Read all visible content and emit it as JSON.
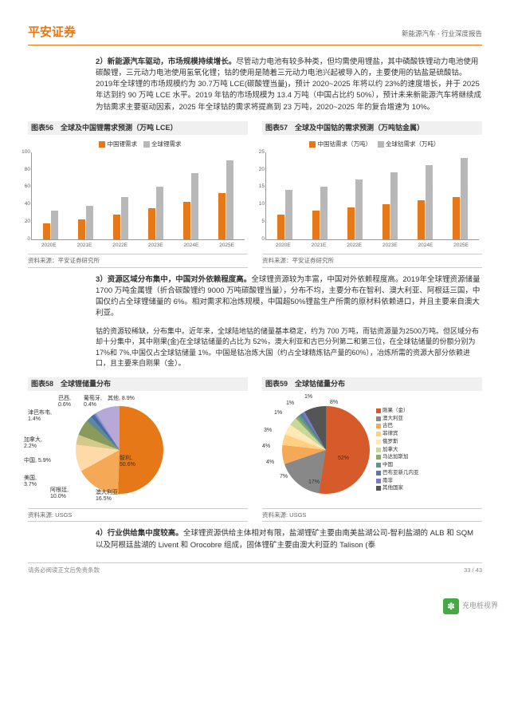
{
  "header": {
    "logo": "平安证券",
    "cat": "新能源汽车 · 行业深度报告"
  },
  "p2": {
    "num": "2）",
    "title": "新能源汽车驱动，市场规模持续增长。",
    "body": "尽管动力电池有较多种类，但均需使用锂盐，其中磷酸铁锂动力电池使用碳酸锂，三元动力电池使用氢氧化锂；钴的使用是随着三元动力电池兴起被导入的，主要使用的钴盐是硫酸钴。2019年全球锂的市场规模约为 30.7万吨 LCE(碳酸锂当量)，预计 2020~2025 年将以约 23%的速度增长，并于 2025 年达到约 90 万吨 LCE 水平。2019 年钴的市场规模为 13.4 万吨（中国占比约 50%），预计未来新能源汽车将继续成为钴需求主要驱动因素，2025 年全球钴的需求将提高到 23 万吨，2020~2025 年的复合增速为 10%。"
  },
  "c56": {
    "title": "图表56　全球及中国锂需求预测（万吨 LCE）",
    "leg1": "中国锂需求",
    "leg2": "全球锂需求",
    "ymax": 100,
    "yt": [
      0,
      20,
      40,
      60,
      80,
      100
    ],
    "cats": [
      "2020E",
      "2021E",
      "2022E",
      "2023E",
      "2024E",
      "2025E"
    ],
    "s1": [
      18,
      22,
      28,
      35,
      42,
      52
    ],
    "s2": [
      32,
      38,
      48,
      60,
      75,
      90
    ],
    "c1": "#e67817",
    "c2": "#b8b8b8"
  },
  "c57": {
    "title": "图表57　全球及中国钴的需求预测（万吨钴金属）",
    "leg1": "中国钴需求（万吨）",
    "leg2": "全球钴需求（万吨）",
    "ymax": 25,
    "yt": [
      0,
      5,
      10,
      15,
      20,
      25
    ],
    "cats": [
      "2020E",
      "2021E",
      "2022E",
      "2023E",
      "2024E",
      "2025E"
    ],
    "s1": [
      7,
      8,
      9,
      10,
      11,
      12
    ],
    "s2": [
      14,
      15,
      17,
      19,
      21,
      23
    ],
    "c1": "#e67817",
    "c2": "#b8b8b8"
  },
  "src1": "资料来源：平安证券研究所",
  "p3": {
    "num": "3）",
    "title": "资源区域分布集中，中国对外依赖程度高。",
    "body": "全球锂资源较为丰富，中国对外依赖程度高。2019年全球锂资源储量 1700 万吨金属锂（折合碳酸锂约 9000 万吨碳酸锂当量），分布不均，主要分布在智利、澳大利亚、阿根廷三国，中国仅约占全球锂储量的 6%。相对需求和冶炼规模，中国超50%锂盐生产所需的原材料依赖进口，并且主要来自澳大利亚。",
    "body2": "钴的资源较稀缺，分布集中。近年来，全球陆地钴的储量基本稳定，约为 700 万吨，而钴资源量为2500万吨。但区域分布却十分集中，其中刚果(金)在全球钴储量的占比为 52%，澳大利亚和古巴分列第二和第三位，在全球钴储量的份额分别为 17%和 7%,中国仅占全球钴储量 1%。中国是钴冶炼大国（约占全球精炼钴产量的60%），冶炼所需的资源大部分依赖进口，且主要来自刚果（金）。"
  },
  "c58": {
    "title": "图表58　全球锂储量分布",
    "slices": [
      {
        "n": "智利",
        "v": 50.6,
        "c": "#e67817"
      },
      {
        "n": "澳大利亚",
        "v": 16.5,
        "c": "#f5a855"
      },
      {
        "n": "阿根廷",
        "v": 10.0,
        "c": "#ffd9a8"
      },
      {
        "n": "美国",
        "v": 3.7,
        "c": "#d4c88c"
      },
      {
        "n": "中国",
        "v": 5.9,
        "c": "#8a9a5b"
      },
      {
        "n": "加拿大",
        "v": 2.2,
        "c": "#5b8a9a"
      },
      {
        "n": "津巴布韦",
        "v": 1.4,
        "c": "#4a68a8"
      },
      {
        "n": "巴西",
        "v": 0.6,
        "c": "#7a8ac8"
      },
      {
        "n": "葡萄牙",
        "v": 0.4,
        "c": "#a0a0c0"
      },
      {
        "n": "其他",
        "v": 8.9,
        "c": "#b8a8d8"
      }
    ]
  },
  "c59": {
    "title": "图表59　全球钴储量分布",
    "slices": [
      {
        "n": "刚果（金）",
        "v": 52,
        "c": "#d65a2a"
      },
      {
        "n": "澳大利亚",
        "v": 17,
        "c": "#888"
      },
      {
        "n": "古巴",
        "v": 7,
        "c": "#f5a855"
      },
      {
        "n": "菲律宾",
        "v": 4,
        "c": "#ffd080"
      },
      {
        "n": "俄罗斯",
        "v": 4,
        "c": "#ffe8b8"
      },
      {
        "n": "加拿大",
        "v": 3,
        "c": "#c8d898"
      },
      {
        "n": "马达加斯加",
        "v": 1,
        "c": "#8aaa6a"
      },
      {
        "n": "中国",
        "v": 1,
        "c": "#5a9a8a"
      },
      {
        "n": "巴布亚新几内亚",
        "v": 1,
        "c": "#5a7a9a"
      },
      {
        "n": "南非",
        "v": 1,
        "c": "#7a7ac8"
      },
      {
        "n": "其他国家",
        "v": 8,
        "c": "#555"
      }
    ]
  },
  "src2": "资料来源: USGS",
  "p4": {
    "num": "4）",
    "title": "行业供给集中度较高。",
    "body": "全球锂资源供给主体相对有限，盐湖锂矿主要由南美盐湖公司-智利盐湖的 ALB 和 SQM 以及阿根廷盐湖的 Livent 和 Orocobre 组成，固体锂矿主要由澳大利亚的 Talison (泰"
  },
  "ftr": {
    "l": "请务必阅读正文后免责条款",
    "r": "33 / 43"
  },
  "wm": "充电桩视界"
}
